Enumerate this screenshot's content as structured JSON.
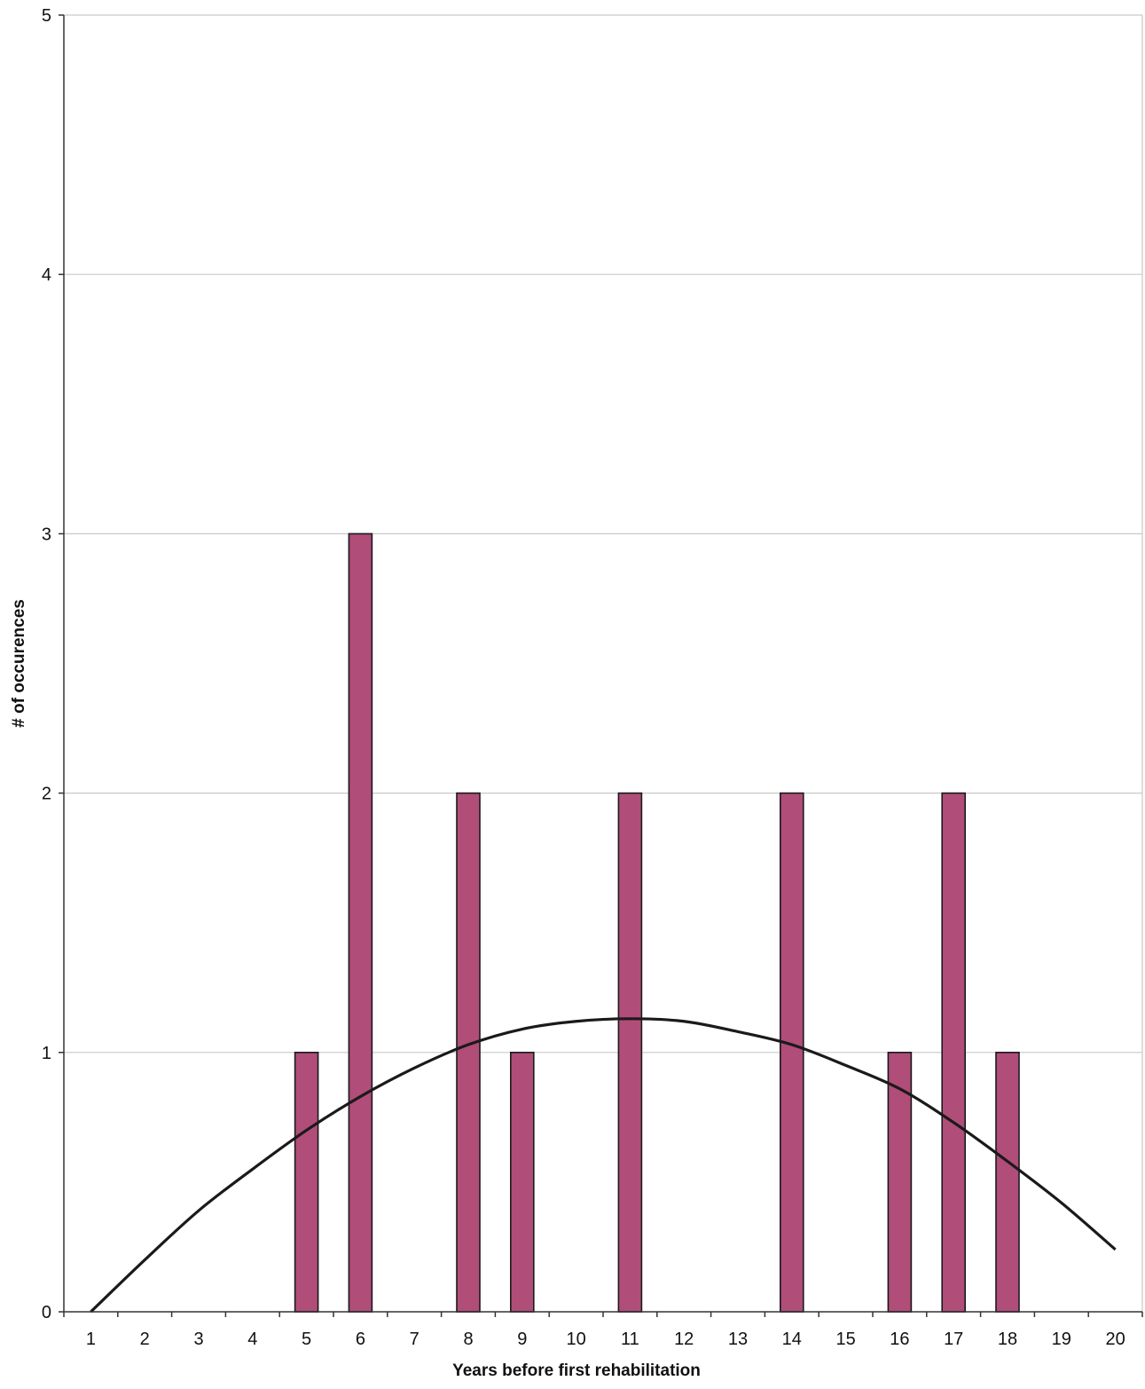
{
  "chart_data": {
    "type": "bar",
    "title": "",
    "xlabel": "Years before first rehabilitation",
    "ylabel": "# of occurences",
    "categories": [
      "1",
      "2",
      "3",
      "4",
      "5",
      "6",
      "7",
      "8",
      "9",
      "10",
      "11",
      "12",
      "13",
      "14",
      "15",
      "16",
      "17",
      "18",
      "19",
      "20"
    ],
    "x_tick_labels": [
      "1",
      "2",
      "3",
      "4",
      "5",
      "6",
      "7",
      "8",
      "9",
      "10",
      "11",
      "12",
      "13",
      "14",
      "15",
      "16",
      "17",
      "18",
      "19",
      "20"
    ],
    "y_tick_labels": [
      "0",
      "1",
      "2",
      "3",
      "4",
      "5"
    ],
    "series": [
      {
        "values": [
          0,
          0,
          0,
          0,
          1,
          3,
          0,
          2,
          1,
          0,
          2,
          0,
          0,
          2,
          0,
          1,
          2,
          1,
          0,
          0
        ]
      }
    ],
    "trendline": {
      "type": "polynomial",
      "x": [
        1,
        2,
        3,
        4,
        5,
        6,
        7,
        8,
        9,
        10,
        11,
        12,
        13,
        14,
        15,
        16,
        17,
        18,
        19,
        20
      ],
      "y": [
        0.0,
        0.2,
        0.39,
        0.55,
        0.7,
        0.83,
        0.94,
        1.03,
        1.09,
        1.12,
        1.13,
        1.12,
        1.08,
        1.03,
        0.95,
        0.86,
        0.73,
        0.58,
        0.42,
        0.24
      ]
    },
    "ylim": [
      0,
      5
    ],
    "grid": true,
    "bar_color": "#b04d79",
    "trendline_color": "#1a1a1a",
    "grid_color": "#c9c9c9"
  }
}
